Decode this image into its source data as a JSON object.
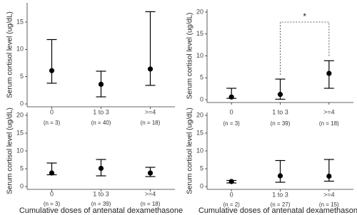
{
  "chart_data": [
    {
      "type": "errorbar",
      "ylabel": "Serum cortisol level (ug/dL)",
      "categories": [
        "0",
        "1 to 3",
        ">=4"
      ],
      "n_labels": [
        "(n = 3)",
        "(n = 40)",
        "(n = 18)"
      ],
      "values": [
        6.1,
        3.6,
        6.4
      ],
      "lower": [
        3.8,
        1.3,
        3.4
      ],
      "upper": [
        11.8,
        6.0,
        16.9
      ],
      "ylim": [
        0,
        18
      ],
      "yticks": [
        0,
        5,
        10,
        15
      ],
      "color": "#000000"
    },
    {
      "type": "errorbar",
      "ylabel": "Serum cortisol level (ug/dL)",
      "categories": [
        "0",
        "1 to 3",
        ">=4"
      ],
      "n_labels": [
        "(n = 3)",
        "(n = 39)",
        "(n = 18)"
      ],
      "values": [
        0.6,
        1.2,
        6.0
      ],
      "lower": [
        0.3,
        0.1,
        2.6
      ],
      "upper": [
        2.6,
        4.7,
        8.9
      ],
      "ylim": [
        0,
        20
      ],
      "yticks": [
        0,
        5,
        10,
        15,
        20
      ],
      "color": "#000000",
      "significance": {
        "label": "*",
        "pair": [
          1,
          2
        ]
      }
    },
    {
      "type": "errorbar",
      "ylabel": "Serum cortisol level (ug/dL)",
      "xlabel": "Cumulative doses of antenatal dexamethasone",
      "categories": [
        "0",
        "1 to 3",
        ">=4"
      ],
      "n_labels": [
        "(n = 3)",
        "(n = 39)",
        "(n = 18)"
      ],
      "values": [
        3.8,
        5.1,
        3.8
      ],
      "lower": [
        3.3,
        3.0,
        2.8
      ],
      "upper": [
        6.6,
        7.6,
        5.4
      ],
      "ylim": [
        0,
        20
      ],
      "yticks": [
        0,
        5,
        10,
        15,
        20
      ],
      "color": "#000000"
    },
    {
      "type": "errorbar",
      "ylabel": "Serum cortisol level (ug/dL)",
      "xlabel": "Cumulative doses of antenatal dexamethasone",
      "categories": [
        "0",
        "1 to 3",
        ">=4"
      ],
      "n_labels": [
        "(n = 2)",
        "(n = 27)",
        "(n = 15)"
      ],
      "values": [
        1.4,
        3.0,
        2.9
      ],
      "lower": [
        1.0,
        1.2,
        1.5
      ],
      "upper": [
        1.7,
        7.3,
        7.6
      ],
      "ylim": [
        0,
        20
      ],
      "yticks": [
        0,
        5,
        10,
        15,
        20
      ],
      "color": "#000000"
    }
  ]
}
